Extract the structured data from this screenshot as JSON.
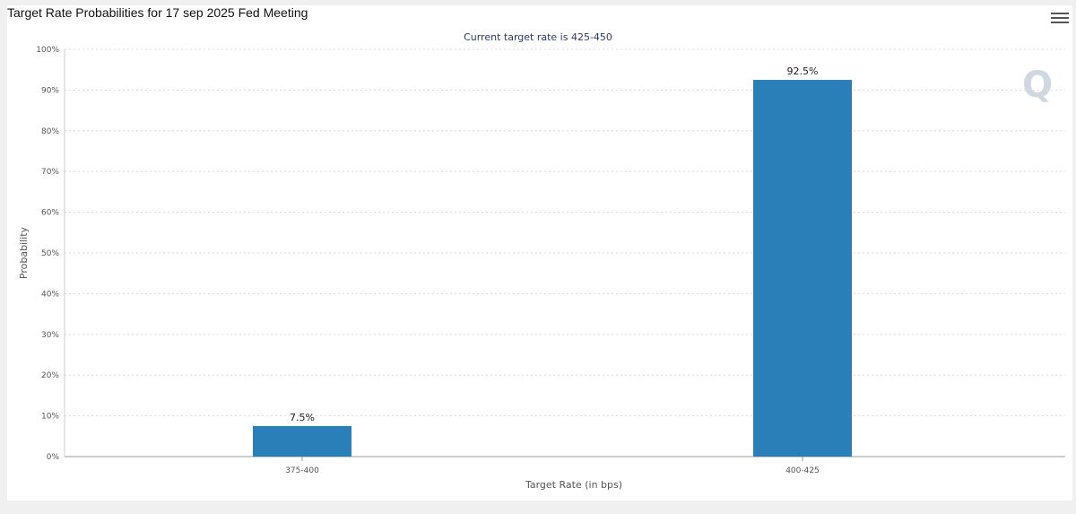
{
  "header": {
    "title": "Target Rate Probabilities for 17 sep 2025 Fed Meeting",
    "menu_icon": "hamburger-menu-icon",
    "watermark": "Q"
  },
  "chart_data": {
    "type": "bar",
    "title": "Target Rate Probabilities for 17 sep 2025 Fed Meeting",
    "subtitle": "Current target rate is 425-450",
    "categories": [
      "375-400",
      "400-425"
    ],
    "values": [
      7.5,
      92.5
    ],
    "data_labels": [
      "7.5%",
      "92.5%"
    ],
    "xlabel": "Target Rate (in bps)",
    "ylabel": "Probability",
    "ylim": [
      0,
      100
    ],
    "yticks": [
      "0%",
      "10%",
      "20%",
      "30%",
      "40%",
      "50%",
      "60%",
      "70%",
      "80%",
      "90%",
      "100%"
    ],
    "grid": true,
    "bar_color": "#2a7fb8",
    "legend": "none"
  }
}
